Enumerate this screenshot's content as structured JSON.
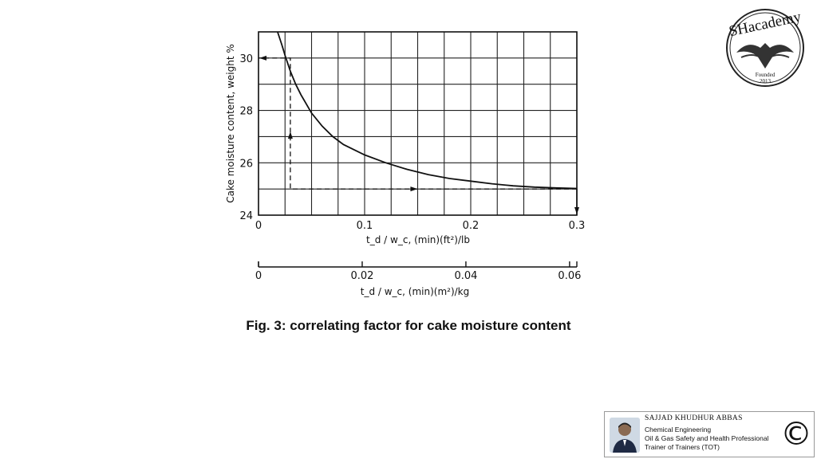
{
  "chart_data": {
    "type": "line",
    "ylabel": "Cake moisture content, weight %",
    "xlabel": "t_d / w_c, (min)(ft²)/lb",
    "xlabel_secondary": "t_d / w_c, (min)(m²)/kg",
    "xlim": [
      0,
      0.3
    ],
    "ylim": [
      24,
      31
    ],
    "x_ticks": [
      "0",
      "0.1",
      "0.2",
      "0.3"
    ],
    "y_ticks": [
      "24",
      "26",
      "28",
      "30"
    ],
    "secondary_xlim": [
      0,
      0.0614
    ],
    "secondary_x_ticks": [
      "0",
      "0.02",
      "0.04",
      "0.06"
    ],
    "grid": true,
    "series": [
      {
        "x": [
          0.018,
          0.022,
          0.025,
          0.03,
          0.035,
          0.04,
          0.05,
          0.06,
          0.07,
          0.08,
          0.1,
          0.12,
          0.14,
          0.16,
          0.18,
          0.2,
          0.22,
          0.24,
          0.26,
          0.28,
          0.3
        ],
        "y": [
          31.0,
          30.5,
          30.1,
          29.5,
          29.0,
          28.6,
          27.9,
          27.4,
          27.0,
          26.7,
          26.3,
          26.0,
          25.75,
          25.55,
          25.4,
          25.3,
          25.2,
          25.12,
          25.07,
          25.04,
          25.02
        ]
      }
    ],
    "annotations": [
      {
        "type": "dashed-arrow-path",
        "points": [
          [
            0.3,
            25.0
          ],
          [
            0.03,
            25.0
          ],
          [
            0.03,
            30.0
          ],
          [
            0.0,
            30.0
          ]
        ]
      },
      {
        "type": "arrow",
        "points": [
          [
            0.3,
            25.0
          ],
          [
            0.3,
            24.0
          ]
        ]
      }
    ]
  },
  "caption": "Fig. 3: correlating factor for cake moisture content",
  "logo": {
    "text": "SHacademy",
    "year": "Founded 2013"
  },
  "card": {
    "name": "SAJJAD KHUDHUR ABBAS",
    "lines": [
      "Chemical Engineering",
      "Oil & Gas Safety and Health Professional",
      "Trainer of Trainers (TOT)"
    ],
    "copyright_symbol": "©"
  }
}
